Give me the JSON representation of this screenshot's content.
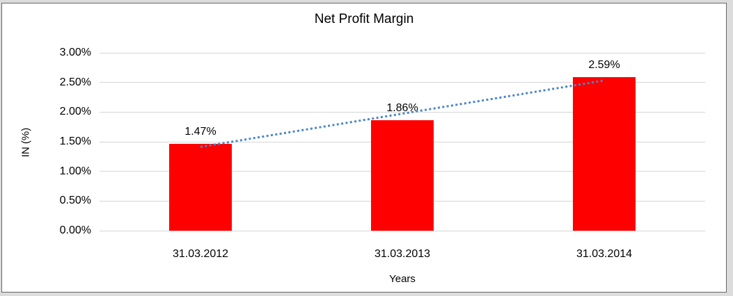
{
  "window": {
    "outer_background": "#dcdcdc",
    "chart_background": "#ffffff",
    "frame_border_color": "#666666"
  },
  "chart_data": {
    "type": "bar",
    "title": "Net Profit Margin",
    "x_axis_title": "Years",
    "y_axis_title": "IN (%)",
    "categories": [
      "31.03.2012",
      "31.03.2013",
      "31.03.2014"
    ],
    "values": [
      1.47,
      1.86,
      2.59
    ],
    "data_labels": [
      "1.47%",
      "1.86%",
      "2.59%"
    ],
    "ytick_labels": [
      "0.00%",
      "0.50%",
      "1.00%",
      "1.50%",
      "2.00%",
      "2.50%",
      "3.00%"
    ],
    "ylim": [
      0,
      3
    ],
    "ytick_step": 0.5,
    "grid": true,
    "legend": "none",
    "bar_color": "#ff0000",
    "gridline_color": "#d6d6d6",
    "text_color": "#000000",
    "trendline": {
      "type": "linear",
      "style": "dotted",
      "color": "#4a86c4"
    }
  }
}
